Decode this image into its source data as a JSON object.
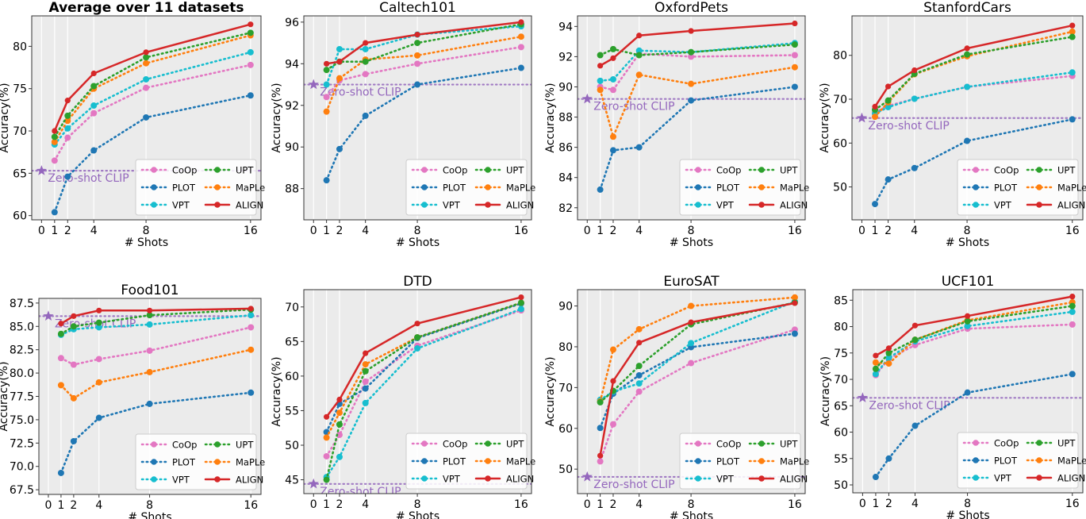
{
  "x_ticks": [
    0,
    1,
    2,
    4,
    8,
    16
  ],
  "xlabel": "# Shots",
  "ylabel": "Accuracy(%)",
  "zero_shot_label": "Zero-shot CLIP",
  "colors": {
    "CoOp": "#e377c2",
    "PLOT": "#1f77b4",
    "VPT": "#17becf",
    "UPT": "#2ca02c",
    "MaPLe": "#ff7f0e",
    "ALIGN": "#d62728",
    "zero_shot": "#9467bd",
    "background": "#ebebeb"
  },
  "legend_order": [
    "CoOp",
    "PLOT",
    "VPT",
    "UPT",
    "MaPLe",
    "ALIGN"
  ],
  "legend_placement": "bottom-right",
  "chart_data": [
    {
      "type": "line",
      "title": "Average over 11 datasets",
      "xlabel": "# Shots",
      "ylabel": "Accuracy(%)",
      "x": [
        1,
        2,
        4,
        8,
        16
      ],
      "xlim": [
        -0.75,
        16.8
      ],
      "ylim": [
        59.5,
        83.6
      ],
      "yticks": [
        60,
        65,
        70,
        75,
        80
      ],
      "grid": "vertical",
      "zero_shot": 65.3,
      "series": [
        {
          "name": "CoOp",
          "values": [
            66.5,
            69.2,
            72.1,
            75.1,
            77.8
          ]
        },
        {
          "name": "PLOT",
          "values": [
            60.4,
            64.6,
            67.7,
            71.6,
            74.2
          ]
        },
        {
          "name": "VPT",
          "values": [
            68.4,
            70.3,
            73.0,
            76.1,
            79.3
          ]
        },
        {
          "name": "UPT",
          "values": [
            69.3,
            71.8,
            75.3,
            78.7,
            81.6
          ]
        },
        {
          "name": "MaPLe",
          "values": [
            68.7,
            71.2,
            75.0,
            78.0,
            81.3
          ]
        },
        {
          "name": "ALIGN",
          "values": [
            70.0,
            73.6,
            76.8,
            79.3,
            82.6
          ]
        }
      ]
    },
    {
      "type": "line",
      "title": "Caltech101",
      "xlabel": "# Shots",
      "ylabel": "Accuracy(%)",
      "x": [
        1,
        2,
        4,
        8,
        16
      ],
      "xlim": [
        -0.75,
        16.8
      ],
      "ylim": [
        86.5,
        96.3
      ],
      "yticks": [
        88,
        90,
        92,
        94,
        96
      ],
      "grid": "vertical",
      "zero_shot": 93.0,
      "series": [
        {
          "name": "CoOp",
          "values": [
            92.4,
            93.2,
            93.5,
            94.0,
            94.8
          ]
        },
        {
          "name": "PLOT",
          "values": [
            88.4,
            89.9,
            91.5,
            93.0,
            93.8
          ]
        },
        {
          "name": "VPT",
          "values": [
            93.0,
            94.7,
            94.7,
            95.4,
            95.8
          ]
        },
        {
          "name": "UPT",
          "values": [
            93.7,
            94.1,
            94.1,
            95.0,
            95.9
          ]
        },
        {
          "name": "MaPLe",
          "values": [
            91.7,
            93.3,
            94.2,
            94.4,
            95.3
          ]
        },
        {
          "name": "ALIGN",
          "values": [
            94.0,
            94.1,
            95.0,
            95.4,
            96.0
          ]
        }
      ]
    },
    {
      "type": "line",
      "title": "OxfordPets",
      "xlabel": "# Shots",
      "ylabel": "Accuracy(%)",
      "x": [
        1,
        2,
        4,
        8,
        16
      ],
      "xlim": [
        -0.75,
        16.8
      ],
      "ylim": [
        81.2,
        94.7
      ],
      "yticks": [
        82,
        84,
        86,
        88,
        90,
        92,
        94
      ],
      "grid": "vertical",
      "zero_shot": 89.2,
      "series": [
        {
          "name": "CoOp",
          "values": [
            90.0,
            89.8,
            92.2,
            92.0,
            92.1
          ]
        },
        {
          "name": "PLOT",
          "values": [
            83.2,
            85.8,
            86.0,
            89.1,
            90.0
          ]
        },
        {
          "name": "VPT",
          "values": [
            90.4,
            90.5,
            92.4,
            92.3,
            92.9
          ]
        },
        {
          "name": "UPT",
          "values": [
            92.1,
            92.5,
            92.1,
            92.3,
            92.8
          ]
        },
        {
          "name": "MaPLe",
          "values": [
            89.8,
            86.7,
            90.8,
            90.2,
            91.3
          ]
        },
        {
          "name": "ALIGN",
          "values": [
            91.4,
            91.9,
            93.4,
            93.7,
            94.2
          ]
        }
      ]
    },
    {
      "type": "line",
      "title": "StanfordCars",
      "xlabel": "# Shots",
      "ylabel": "Accuracy(%)",
      "x": [
        1,
        2,
        4,
        8,
        16
      ],
      "xlim": [
        -0.75,
        16.8
      ],
      "ylim": [
        42.5,
        89.0
      ],
      "yticks": [
        50,
        60,
        70,
        80
      ],
      "grid": "vertical",
      "zero_shot": 65.7,
      "series": [
        {
          "name": "CoOp",
          "values": [
            67.0,
            68.5,
            70.1,
            72.8,
            75.3
          ]
        },
        {
          "name": "PLOT",
          "values": [
            46.1,
            51.7,
            54.3,
            60.5,
            65.4
          ]
        },
        {
          "name": "VPT",
          "values": [
            66.7,
            68.2,
            70.1,
            72.8,
            76.1
          ]
        },
        {
          "name": "UPT",
          "values": [
            67.6,
            69.7,
            75.8,
            80.2,
            84.2
          ]
        },
        {
          "name": "MaPLe",
          "values": [
            66.0,
            69.3,
            75.7,
            79.8,
            85.4
          ]
        },
        {
          "name": "ALIGN",
          "values": [
            68.3,
            72.9,
            76.6,
            81.6,
            86.8
          ]
        }
      ]
    },
    {
      "type": "line",
      "title": "Food101",
      "xlabel": "# Shots",
      "ylabel": "Accuracy(%)",
      "x": [
        1,
        2,
        4,
        8,
        16
      ],
      "xlim": [
        -0.75,
        16.8
      ],
      "ylim": [
        67.0,
        88.0
      ],
      "yticks": [
        67.5,
        70.0,
        72.5,
        75.0,
        77.5,
        80.0,
        82.5,
        85.0,
        87.5
      ],
      "grid": "vertical",
      "zero_shot": 86.1,
      "series": [
        {
          "name": "CoOp",
          "values": [
            81.6,
            80.9,
            81.5,
            82.4,
            84.9
          ]
        },
        {
          "name": "PLOT",
          "values": [
            69.3,
            72.7,
            75.2,
            76.7,
            77.9
          ]
        },
        {
          "name": "VPT",
          "values": [
            84.1,
            84.7,
            84.9,
            85.2,
            86.2
          ]
        },
        {
          "name": "UPT",
          "values": [
            84.2,
            85.0,
            85.4,
            86.2,
            86.8
          ]
        },
        {
          "name": "MaPLe",
          "values": [
            78.7,
            77.3,
            79.0,
            80.1,
            82.5
          ]
        },
        {
          "name": "ALIGN",
          "values": [
            85.3,
            86.1,
            86.7,
            86.7,
            86.9
          ]
        }
      ]
    },
    {
      "type": "line",
      "title": "DTD",
      "xlabel": "# Shots",
      "ylabel": "Accuracy(%)",
      "x": [
        1,
        2,
        4,
        8,
        16
      ],
      "xlim": [
        -0.75,
        16.8
      ],
      "ylim": [
        43.0,
        72.5
      ],
      "yticks": [
        45,
        50,
        55,
        60,
        65,
        70
      ],
      "grid": "vertical",
      "zero_shot": 44.4,
      "series": [
        {
          "name": "CoOp",
          "values": [
            48.4,
            51.5,
            59.2,
            64.4,
            69.5
          ]
        },
        {
          "name": "PLOT",
          "values": [
            51.9,
            56.0,
            58.2,
            65.5,
            70.5
          ]
        },
        {
          "name": "VPT",
          "values": [
            45.4,
            48.3,
            56.1,
            64.0,
            69.7
          ]
        },
        {
          "name": "UPT",
          "values": [
            45.0,
            53.0,
            60.7,
            65.6,
            70.6
          ]
        },
        {
          "name": "MaPLe",
          "values": [
            51.1,
            54.7,
            61.7,
            65.6,
            70.6
          ]
        },
        {
          "name": "ALIGN",
          "values": [
            54.1,
            56.6,
            63.3,
            67.6,
            71.4
          ]
        }
      ]
    },
    {
      "type": "line",
      "title": "EuroSAT",
      "xlabel": "# Shots",
      "ylabel": "Accuracy(%)",
      "x": [
        1,
        2,
        4,
        8,
        16
      ],
      "xlim": [
        -0.75,
        16.8
      ],
      "ylim": [
        44.0,
        94.0
      ],
      "yticks": [
        50,
        60,
        70,
        80,
        90
      ],
      "grid": "vertical",
      "zero_shot": 48.1,
      "series": [
        {
          "name": "CoOp",
          "values": [
            51.9,
            61.0,
            69.0,
            76.0,
            84.2
          ]
        },
        {
          "name": "PLOT",
          "values": [
            60.1,
            68.5,
            73.0,
            79.9,
            83.2
          ]
        },
        {
          "name": "VPT",
          "values": [
            67.0,
            69.0,
            71.0,
            80.9,
            91.1
          ]
        },
        {
          "name": "UPT",
          "values": [
            66.4,
            69.2,
            75.3,
            85.5,
            90.8
          ]
        },
        {
          "name": "MaPLe",
          "values": [
            66.6,
            79.3,
            84.3,
            90.0,
            92.1
          ]
        },
        {
          "name": "ALIGN",
          "values": [
            53.3,
            71.6,
            81.0,
            86.0,
            90.7
          ]
        }
      ]
    },
    {
      "type": "line",
      "title": "UCF101",
      "xlabel": "# Shots",
      "ylabel": "Accuracy(%)",
      "x": [
        1,
        2,
        4,
        8,
        16
      ],
      "xlim": [
        -0.75,
        16.8
      ],
      "ylim": [
        48.5,
        87.0
      ],
      "yticks": [
        50,
        55,
        60,
        65,
        70,
        75,
        80,
        85
      ],
      "grid": "vertical",
      "zero_shot": 66.5,
      "series": [
        {
          "name": "CoOp",
          "values": [
            70.8,
            73.9,
            76.5,
            79.6,
            80.4
          ]
        },
        {
          "name": "PLOT",
          "values": [
            51.5,
            55.0,
            61.2,
            67.5,
            71.0
          ]
        },
        {
          "name": "VPT",
          "values": [
            71.0,
            74.1,
            77.2,
            80.1,
            82.8
          ]
        },
        {
          "name": "UPT",
          "values": [
            72.0,
            75.0,
            77.5,
            81.0,
            83.9
          ]
        },
        {
          "name": "MaPLe",
          "values": [
            73.2,
            73.0,
            77.5,
            81.2,
            84.6
          ]
        },
        {
          "name": "ALIGN",
          "values": [
            74.5,
            75.9,
            80.2,
            82.0,
            85.7
          ]
        }
      ]
    }
  ]
}
